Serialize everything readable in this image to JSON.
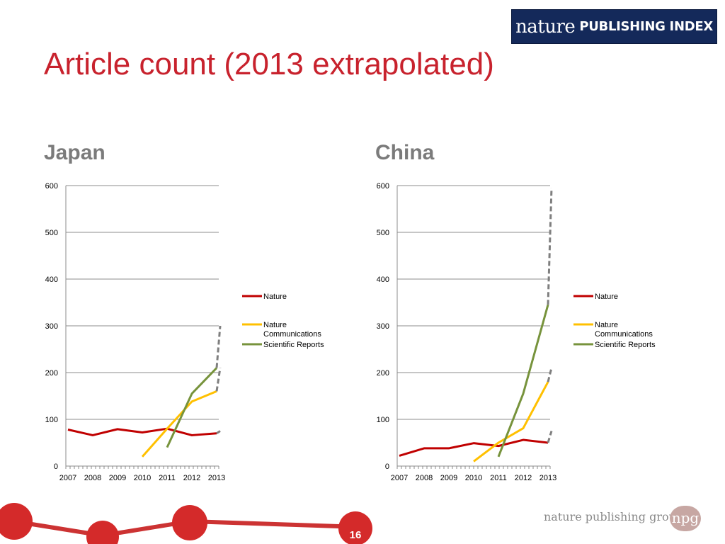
{
  "logo": {
    "script_text": "nature",
    "caps_text": "PUBLISHING INDEX"
  },
  "slide": {
    "title": "Article count (2013 extrapolated)",
    "page_number": "16"
  },
  "footer": {
    "brand_text": "nature publishing group",
    "badge_text": "npg"
  },
  "colors": {
    "nature": "#c00000",
    "nature_communications": "#ffc000",
    "scientific_reports": "#77933c",
    "extrapolated": "#7f7f7f"
  },
  "chart_data": [
    {
      "type": "line",
      "title": "Japan",
      "x": [
        2007,
        2008,
        2009,
        2010,
        2011,
        2012,
        2013
      ],
      "ylim": [
        0,
        600
      ],
      "yticks": [
        0,
        100,
        200,
        300,
        400,
        500,
        600
      ],
      "grid": true,
      "legend_position": "right",
      "series": [
        {
          "name": "Nature",
          "key": "nature",
          "values": [
            78,
            66,
            79,
            72,
            80,
            66,
            70
          ],
          "extrapolated_2013": 75
        },
        {
          "name": "Nature Communications",
          "key": "nature_communications",
          "values": [
            null,
            null,
            null,
            20,
            80,
            138,
            160
          ],
          "extrapolated_2013": 210
        },
        {
          "name": "Scientific Reports",
          "key": "scientific_reports",
          "values": [
            null,
            null,
            null,
            null,
            40,
            155,
            210
          ],
          "extrapolated_2013": 300
        }
      ]
    },
    {
      "type": "line",
      "title": "China",
      "x": [
        2007,
        2008,
        2009,
        2010,
        2011,
        2012,
        2013
      ],
      "ylim": [
        0,
        600
      ],
      "yticks": [
        0,
        100,
        200,
        300,
        400,
        500,
        600
      ],
      "grid": true,
      "legend_position": "right",
      "series": [
        {
          "name": "Nature",
          "key": "nature",
          "values": [
            22,
            38,
            38,
            49,
            43,
            56,
            50
          ],
          "extrapolated_2013": 75
        },
        {
          "name": "Nature Communications",
          "key": "nature_communications",
          "values": [
            null,
            null,
            null,
            10,
            50,
            81,
            180
          ],
          "extrapolated_2013": 210
        },
        {
          "name": "Scientific Reports",
          "key": "scientific_reports",
          "values": [
            null,
            null,
            null,
            null,
            20,
            155,
            345
          ],
          "extrapolated_2013": 595
        }
      ]
    }
  ]
}
